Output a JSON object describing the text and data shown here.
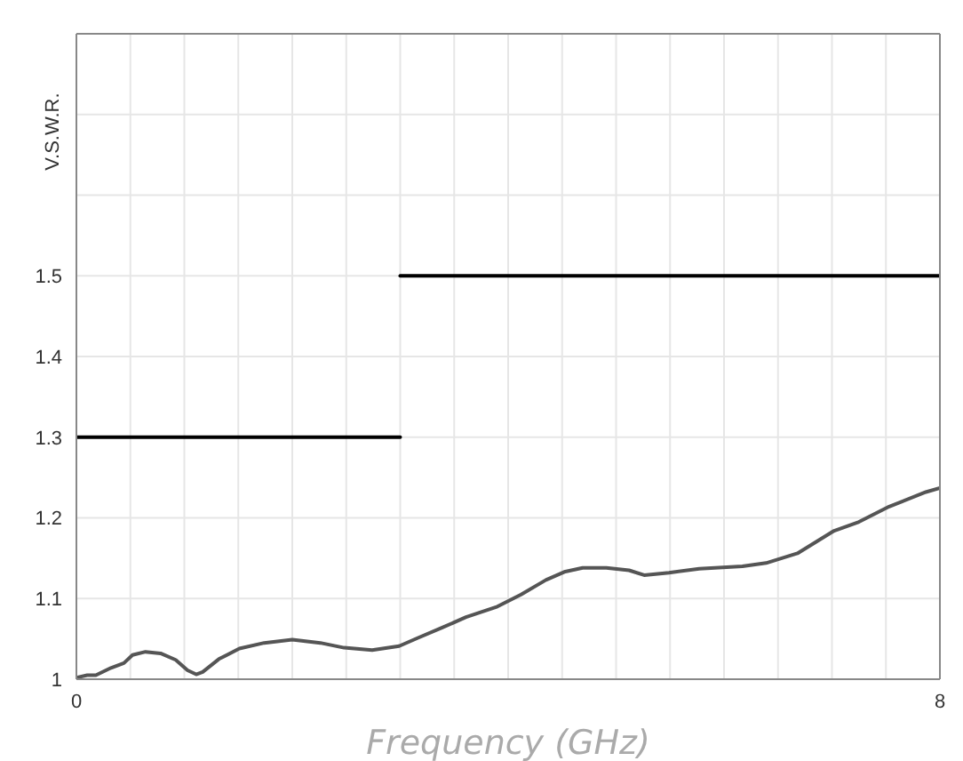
{
  "chart_data": {
    "type": "line",
    "xlabel": "Frequency (GHz)",
    "ylabel": "V.S.W.R.",
    "xlim": [
      0,
      8
    ],
    "xticks": [
      0,
      {
        "value": 0.5,
        "label": null
      },
      {
        "value": 1,
        "label": null
      },
      {
        "value": 1.5,
        "label": null
      },
      {
        "value": 2,
        "label": null
      },
      {
        "value": 2.5,
        "label": null
      },
      {
        "value": 3,
        "label": null
      },
      {
        "value": 3.5,
        "label": null
      },
      {
        "value": 4,
        "label": null
      },
      {
        "value": 4.5,
        "label": null
      },
      {
        "value": 5,
        "label": null
      },
      {
        "value": 5.5,
        "label": null
      },
      {
        "value": 6,
        "label": null
      },
      {
        "value": 6.5,
        "label": null
      },
      {
        "value": 7,
        "label": null
      },
      {
        "value": 7.5,
        "label": null
      },
      8
    ],
    "ylim": [
      1,
      1.8
    ],
    "yticks": [
      1,
      1.1,
      1.2,
      1.3,
      1.4,
      1.5,
      {
        "value": 1.6,
        "label": null
      },
      {
        "value": 1.7,
        "label": null
      }
    ],
    "grid": true,
    "marker": "none",
    "line_style": "solid",
    "series": [
      {
        "color": "#555555",
        "x": [
          0,
          0.1,
          0.18,
          0.32,
          0.44,
          0.52,
          0.64,
          0.78,
          0.92,
          1.03,
          1.11,
          1.17,
          1.32,
          1.51,
          1.74,
          2.0,
          2.26,
          2.48,
          2.74,
          2.99,
          3.16,
          3.39,
          3.61,
          3.9,
          4.12,
          4.35,
          4.52,
          4.69,
          4.91,
          5.12,
          5.26,
          5.49,
          5.77,
          6.17,
          6.39,
          6.68,
          7.02,
          7.25,
          7.53,
          7.87,
          8.0
        ],
        "values": [
          1.002,
          1.005,
          1.005,
          1.014,
          1.02,
          1.03,
          1.034,
          1.032,
          1.024,
          1.011,
          1.006,
          1.009,
          1.025,
          1.038,
          1.045,
          1.049,
          1.045,
          1.039,
          1.036,
          1.041,
          1.051,
          1.064,
          1.077,
          1.09,
          1.105,
          1.123,
          1.133,
          1.138,
          1.138,
          1.135,
          1.129,
          1.132,
          1.137,
          1.14,
          1.144,
          1.156,
          1.184,
          1.195,
          1.214,
          1.232,
          1.237
        ]
      },
      {
        "color": "#000000",
        "x": [
          0,
          3
        ],
        "values": [
          1.3,
          1.3
        ]
      },
      {
        "color": "#000000",
        "x": [
          3,
          8
        ],
        "values": [
          1.5,
          1.5
        ]
      }
    ]
  }
}
